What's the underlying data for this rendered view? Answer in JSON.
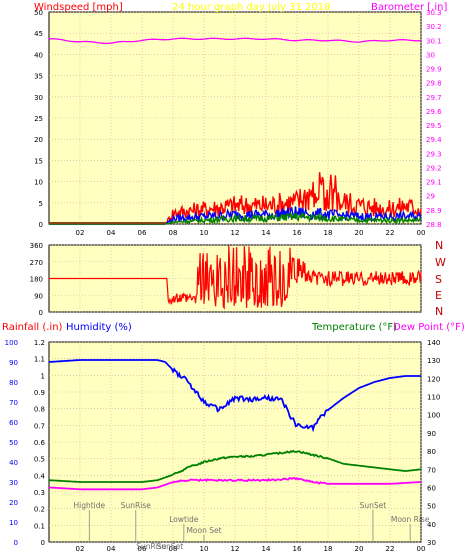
{
  "header": {
    "left_label": "Windspeed [mph]",
    "title": "24 hour graph day   July 31 2018",
    "right_label": "Barometer [.in]"
  },
  "dir_labels": [
    "N",
    "W",
    "S",
    "E",
    "N"
  ],
  "bottom_header": {
    "rain_label": "Rainfall (.in)",
    "humidity_label": "Humidity (%)",
    "temp_label": "Temperature (°F)",
    "dew_label": "Dew Point (°F)"
  },
  "colors": {
    "plot_bg": "#ffffc0",
    "frame": "#000000",
    "grid": "#d8a8a8",
    "red": "#ff0000",
    "blue": "#0000ff",
    "green": "#008000",
    "magenta": "#ff00ff",
    "dark_red": "#c00000",
    "baro_text": "#ff00ff",
    "title_text": "#ffff00",
    "temp_text": "#008000",
    "tick_text": "#000000"
  },
  "chart_data": [
    {
      "type": "line",
      "x_ticks": [
        "02",
        "04",
        "06",
        "08",
        "10",
        "12",
        "14",
        "16",
        "18",
        "20",
        "22",
        "00"
      ],
      "y_left_ticks": [
        "0",
        "5",
        "10",
        "15",
        "20",
        "25",
        "30",
        "35",
        "40",
        "45",
        "50"
      ],
      "y_left_range": [
        0,
        50
      ],
      "y_right_ticks": [
        "28.8",
        "28.9",
        "29",
        "29.1",
        "29.2",
        "29.3",
        "29.4",
        "29.5",
        "29.6",
        "29.7",
        "29.8",
        "29.9",
        "30",
        "30.1",
        "30.2",
        "30.3"
      ],
      "y_right_range": [
        28.8,
        30.3
      ],
      "x_range_hours": [
        0,
        24
      ],
      "series": [
        {
          "name": "Barometer",
          "axis": "right",
          "x": [
            0,
            2,
            4,
            6,
            8,
            10,
            12,
            14,
            16,
            18,
            20,
            22,
            24
          ],
          "y": [
            30.11,
            30.09,
            30.08,
            30.1,
            30.11,
            30.11,
            30.11,
            30.11,
            30.1,
            30.1,
            30.09,
            30.1,
            30.1
          ]
        },
        {
          "name": "Wind gust",
          "axis": "left",
          "x": [
            0,
            7.5,
            8,
            10,
            12,
            14,
            16,
            17,
            18,
            19,
            20,
            22,
            23,
            24
          ],
          "y": [
            0,
            0,
            3,
            4,
            5,
            5,
            6,
            9,
            7,
            6,
            5,
            4,
            5,
            4
          ]
        },
        {
          "name": "Wind average",
          "axis": "left",
          "x": [
            0,
            7.5,
            8,
            10,
            12,
            14,
            16,
            18,
            20,
            22,
            24
          ],
          "y": [
            0,
            0,
            1.5,
            2,
            2.5,
            2.5,
            3,
            2.5,
            2,
            2,
            2
          ]
        },
        {
          "name": "Wind low",
          "axis": "left",
          "x": [
            0,
            7.5,
            8,
            10,
            12,
            14,
            16,
            18,
            20,
            22,
            24
          ],
          "y": [
            0,
            0,
            0.5,
            1,
            1.5,
            1.5,
            2,
            1.5,
            1,
            1,
            1
          ]
        }
      ]
    },
    {
      "type": "line",
      "x_range_hours": [
        0,
        24
      ],
      "y_ticks": [
        "0",
        "90",
        "180",
        "270",
        "360"
      ],
      "y_range": [
        0,
        360
      ],
      "series": [
        {
          "name": "Wind direction",
          "x": [
            0,
            7.6,
            7.7,
            9,
            10,
            11,
            12,
            13,
            14,
            15,
            16,
            17,
            18,
            19,
            20,
            21,
            22,
            23,
            24
          ],
          "y": [
            180,
            180,
            60,
            50,
            120,
            280,
            200,
            300,
            150,
            320,
            220,
            200,
            170,
            190,
            180,
            170,
            190,
            170,
            170
          ]
        }
      ]
    },
    {
      "type": "line",
      "x_ticks": [
        "02",
        "04",
        "06",
        "08",
        "10",
        "12",
        "14",
        "16",
        "18",
        "20",
        "22",
        "00"
      ],
      "x_range_hours": [
        0,
        24
      ],
      "y_rain_ticks": [
        "0",
        "0.1",
        "0.2",
        "0.3",
        "0.4",
        "0.5",
        "0.6",
        "0.7",
        "0.8",
        "0.9",
        "1",
        "1.1",
        "1.2"
      ],
      "y_rain_range": [
        0,
        1.2
      ],
      "y_humidity_ticks": [
        "0",
        "10",
        "20",
        "30",
        "40",
        "50",
        "60",
        "70",
        "80",
        "90",
        "100"
      ],
      "y_humidity_range": [
        0,
        100
      ],
      "y_temp_ticks": [
        "30",
        "40",
        "50",
        "60",
        "70",
        "80",
        "90",
        "100",
        "110",
        "120",
        "130",
        "140"
      ],
      "y_temp_range": [
        30,
        140
      ],
      "series": [
        {
          "name": "Humidity",
          "axis": "humidity",
          "x": [
            0,
            2,
            4,
            6,
            7,
            7.5,
            8,
            9,
            10,
            11,
            12,
            13,
            14,
            15,
            15.5,
            16,
            17,
            17.5,
            18,
            19,
            20,
            21,
            22,
            23,
            24
          ],
          "y": [
            90,
            91,
            91,
            91,
            91,
            90,
            86,
            80,
            70,
            66,
            72,
            71,
            72,
            71,
            64,
            58,
            57,
            62,
            66,
            72,
            77,
            80,
            82,
            83,
            83
          ]
        },
        {
          "name": "Temperature",
          "axis": "temp",
          "x": [
            0,
            2,
            4,
            6,
            7,
            8,
            9,
            10,
            11,
            12,
            13,
            14,
            15,
            16,
            17,
            18,
            19,
            20,
            21,
            22,
            23,
            24
          ],
          "y": [
            64,
            63,
            63,
            63,
            64,
            67,
            71,
            74,
            76,
            77,
            77,
            78,
            79,
            80,
            78,
            76,
            73,
            72,
            71,
            70,
            69,
            70
          ]
        },
        {
          "name": "Dew Point",
          "axis": "temp",
          "x": [
            0,
            2,
            4,
            6,
            7,
            8,
            9,
            10,
            12,
            14,
            16,
            17,
            18,
            20,
            22,
            24
          ],
          "y": [
            60,
            59,
            59,
            59,
            60,
            63,
            64,
            64,
            64,
            64,
            65,
            63,
            62,
            62,
            62,
            63
          ]
        }
      ],
      "events": [
        {
          "label": "Hightide",
          "hour": 2.6,
          "row": "upper"
        },
        {
          "label": "SunRise",
          "hour": 5.6,
          "row": "upper"
        },
        {
          "label": "Lowtide",
          "hour": 8.7,
          "row": "mid"
        },
        {
          "label": "Moon Set",
          "hour": 10.0,
          "row": "lower"
        },
        {
          "label": "SunSet",
          "hour": 20.9,
          "row": "upper"
        },
        {
          "label": "Moon Rise",
          "hour": 23.3,
          "row": "mid"
        },
        {
          "label": "SunRise",
          "hour": 6.6,
          "row": "bottom"
        },
        {
          "label": "SunSet",
          "hour": 7.8,
          "row": "bottom"
        }
      ]
    }
  ]
}
